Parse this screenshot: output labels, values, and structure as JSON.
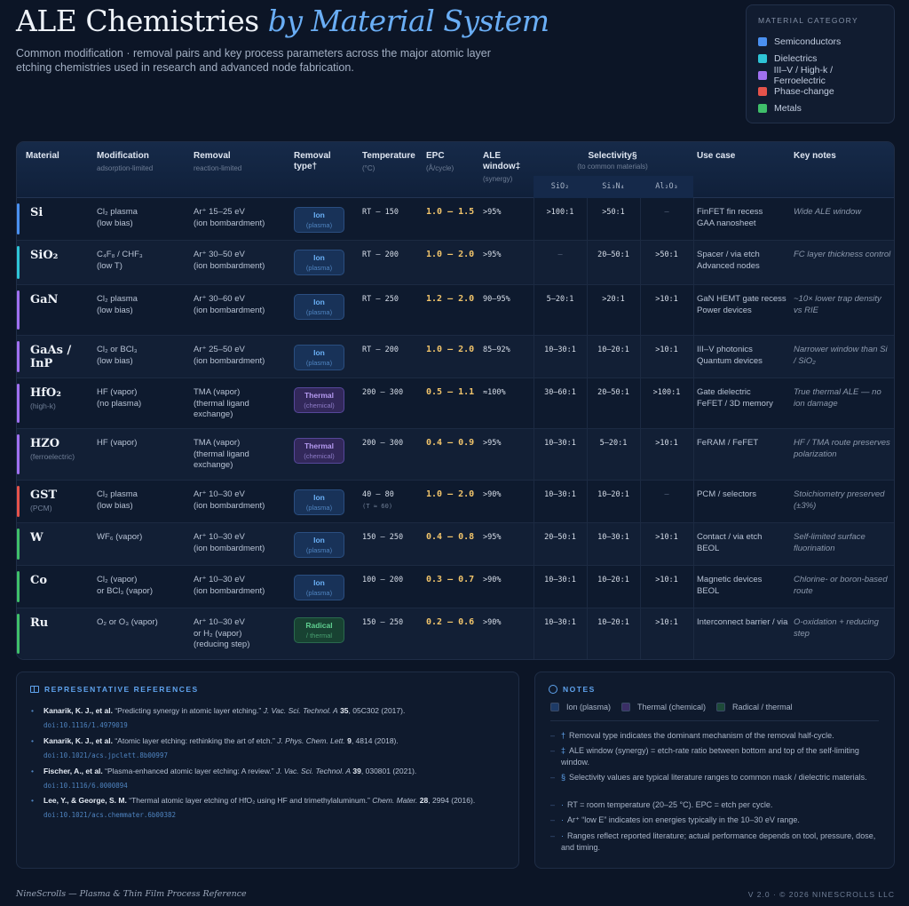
{
  "header": {
    "title_main": "ALE Chemistries",
    "title_accent": "by Material System",
    "subtitle": "Common modification · removal pairs and key process parameters across the major atomic layer etching chemistries used in research and advanced node fabrication."
  },
  "legend": {
    "title": "MATERIAL CATEGORY",
    "items": [
      {
        "label": "Semiconductors",
        "color": "#4a90f0"
      },
      {
        "label": "Dielectrics",
        "color": "#2ec4d6"
      },
      {
        "label": "III–V / High-k / Ferroelectric",
        "color": "#a070f0"
      },
      {
        "label": "Phase-change",
        "color": "#e5534b"
      },
      {
        "label": "Metals",
        "color": "#3fbf6a"
      }
    ]
  },
  "table": {
    "headers": {
      "material": "Material",
      "modification": "Modification",
      "modification_sub": "adsorption-limited",
      "removal": "Removal",
      "removal_sub": "reaction-limited",
      "type": "Removal type†",
      "temperature": "Temperature",
      "temperature_sub": "(°C)",
      "epc": "EPC",
      "epc_sub": "(Å/cycle)",
      "window": "ALE window‡",
      "window_sub": "(synergy)",
      "selectivity": "Selectivity§",
      "selectivity_sub": "(to common materials)",
      "sel_cols": [
        "SiO₂",
        "Si₃N₄",
        "Al₂O₃"
      ],
      "use": "Use case",
      "notes": "Key notes"
    },
    "rows": [
      {
        "material": "Si",
        "sub": "",
        "color": "#4a90f0",
        "mod": "Cl₂ plasma\n(low bias)",
        "rem": "Ar⁺ 15–25 eV\n(ion bombardment)",
        "type": "Ion",
        "type_sub": "(plasma)",
        "kind": "ion",
        "temp": "RT – 150",
        "temp_sub": "",
        "epc": "1.0 – 1.5",
        "window": ">95%",
        "sel": [
          ">100:1",
          ">50:1",
          "—"
        ],
        "use": "FinFET fin recess\nGAA nanosheet",
        "note": "Wide ALE window"
      },
      {
        "material": "SiO₂",
        "sub": "",
        "color": "#2ec4d6",
        "mod": "C₄F₈ / CHF₃\n(low T)",
        "rem": "Ar⁺ 30–50 eV\n(ion bombardment)",
        "type": "Ion",
        "type_sub": "(plasma)",
        "kind": "ion",
        "temp": "RT – 200",
        "temp_sub": "",
        "epc": "1.0 – 2.0",
        "window": ">95%",
        "sel": [
          "—",
          "20–50:1",
          ">50:1"
        ],
        "use": "Spacer / via etch\nAdvanced nodes",
        "note": "FC layer thickness control"
      },
      {
        "material": "GaN",
        "sub": "",
        "color": "#a070f0",
        "mod": "Cl₂ plasma\n(low bias)",
        "rem": "Ar⁺ 30–60 eV\n(ion bombardment)",
        "type": "Ion",
        "type_sub": "(plasma)",
        "kind": "ion",
        "temp": "RT – 250",
        "temp_sub": "",
        "epc": "1.2 – 2.0",
        "window": "90–95%",
        "sel": [
          "5–20:1",
          ">20:1",
          ">10:1"
        ],
        "use": "GaN HEMT gate recess\nPower devices",
        "note": "~10× lower trap density vs RIE"
      },
      {
        "material": "GaAs / InP",
        "sub": "",
        "color": "#a070f0",
        "mod": "Cl₂ or BCl₃\n(low bias)",
        "rem": "Ar⁺ 25–50 eV\n(ion bombardment)",
        "type": "Ion",
        "type_sub": "(plasma)",
        "kind": "ion",
        "temp": "RT – 200",
        "temp_sub": "",
        "epc": "1.0 – 2.0",
        "window": "85–92%",
        "sel": [
          "10–30:1",
          "10–20:1",
          ">10:1"
        ],
        "use": "III–V photonics\nQuantum devices",
        "note": "Narrower window than Si / SiO₂"
      },
      {
        "material": "HfO₂",
        "sub": "(high-k)",
        "color": "#a070f0",
        "mod": "HF (vapor)\n(no plasma)",
        "rem": "TMA (vapor)\n(thermal ligand exchange)",
        "type": "Thermal",
        "type_sub": "(chemical)",
        "kind": "thermal",
        "temp": "200 – 300",
        "temp_sub": "",
        "epc": "0.5 – 1.1",
        "window": "≈100%",
        "sel": [
          "30–60:1",
          "20–50:1",
          ">100:1"
        ],
        "use": "Gate dielectric\nFeFET / 3D memory",
        "note": "True thermal ALE — no ion damage"
      },
      {
        "material": "HZO",
        "sub": "(ferroelectric)",
        "color": "#a070f0",
        "mod": "HF (vapor)",
        "rem": "TMA (vapor)\n(thermal ligand exchange)",
        "type": "Thermal",
        "type_sub": "(chemical)",
        "kind": "thermal",
        "temp": "200 – 300",
        "temp_sub": "",
        "epc": "0.4 – 0.9",
        "window": ">95%",
        "sel": [
          "10–30:1",
          "5–20:1",
          ">10:1"
        ],
        "use": "FeRAM / FeFET",
        "note": "HF / TMA route preserves polarization"
      },
      {
        "material": "GST",
        "sub": "(PCM)",
        "color": "#e5534b",
        "mod": "Cl₂ plasma\n(low bias)",
        "rem": "Ar⁺ 10–30 eV\n(ion bombardment)",
        "type": "Ion",
        "type_sub": "(plasma)",
        "kind": "ion",
        "temp": "40 – 80",
        "temp_sub": "(T ≈ 60)",
        "epc": "1.0 – 2.0",
        "window": ">90%",
        "sel": [
          "10–30:1",
          "10–20:1",
          "—"
        ],
        "use": "PCM / selectors",
        "note": "Stoichiometry preserved (±3%)"
      },
      {
        "material": "W",
        "sub": "",
        "color": "#3fbf6a",
        "mod": "WF₆ (vapor)",
        "rem": "Ar⁺ 10–30 eV\n(ion bombardment)",
        "type": "Ion",
        "type_sub": "(plasma)",
        "kind": "ion",
        "temp": "150 – 250",
        "temp_sub": "",
        "epc": "0.4 – 0.8",
        "window": ">95%",
        "sel": [
          "20–50:1",
          "10–30:1",
          ">10:1"
        ],
        "use": "Contact / via etch\nBEOL",
        "note": "Self-limited surface fluorination"
      },
      {
        "material": "Co",
        "sub": "",
        "color": "#3fbf6a",
        "mod": "Cl₂ (vapor)\nor BCl₃ (vapor)",
        "rem": "Ar⁺ 10–30 eV\n(ion bombardment)",
        "type": "Ion",
        "type_sub": "(plasma)",
        "kind": "ion",
        "temp": "100 – 200",
        "temp_sub": "",
        "epc": "0.3 – 0.7",
        "window": ">90%",
        "sel": [
          "10–30:1",
          "10–20:1",
          ">10:1"
        ],
        "use": "Magnetic devices\nBEOL",
        "note": "Chlorine- or boron-based route"
      },
      {
        "material": "Ru",
        "sub": "",
        "color": "#3fbf6a",
        "mod": "O₂ or O₃ (vapor)",
        "rem": "Ar⁺ 10–30 eV\nor H₂ (vapor)\n(reducing step)",
        "type": "Radical",
        "type_sub": "/ thermal",
        "kind": "radical",
        "temp": "150 – 250",
        "temp_sub": "",
        "epc": "0.2 – 0.6",
        "window": ">90%",
        "sel": [
          "10–30:1",
          "10–20:1",
          ">10:1"
        ],
        "use": "Interconnect barrier / via",
        "note": "O-oxidation + reducing step"
      }
    ]
  },
  "references": {
    "title": "REPRESENTATIVE REFERENCES",
    "items": [
      {
        "authors": "Kanarik, K. J., et al.",
        "title": "“Predicting synergy in atomic layer etching.”",
        "journal": "J. Vac. Sci. Technol. A",
        "volume": "35",
        "rest": ", 05C302 (2017).",
        "doi": "doi:10.1116/1.4979019"
      },
      {
        "authors": "Kanarik, K. J., et al.",
        "title": "“Atomic layer etching: rethinking the art of etch.”",
        "journal": "J. Phys. Chem. Lett.",
        "volume": "9",
        "rest": ", 4814 (2018).",
        "doi": "doi:10.1021/acs.jpclett.8b00997"
      },
      {
        "authors": "Fischer, A., et al.",
        "title": "“Plasma-enhanced atomic layer etching: A review.”",
        "journal": "J. Vac. Sci. Technol. A",
        "volume": "39",
        "rest": ", 030801 (2021).",
        "doi": "doi:10.1116/6.0000894"
      },
      {
        "authors": "Lee, Y., & George, S. M.",
        "title": "“Thermal atomic layer etching of HfO₂ using HF and trimethylaluminum.”",
        "journal": "Chem. Mater.",
        "volume": "28",
        "rest": ", 2994 (2016).",
        "doi": "doi:10.1021/acs.chemmater.6b00382"
      }
    ]
  },
  "notes": {
    "title": "NOTES",
    "legend": [
      {
        "label": "Ion (plasma)",
        "color": "#1d3a66"
      },
      {
        "label": "Thermal (chemical)",
        "color": "#3a2e66"
      },
      {
        "label": "Radical / thermal",
        "color": "#1d4a38"
      }
    ],
    "items": [
      {
        "mark": "†",
        "text": "Removal type indicates the dominant mechanism of the removal half-cycle."
      },
      {
        "mark": "‡",
        "text": "ALE window (synergy) = etch-rate ratio between bottom and top of the self-limiting window."
      },
      {
        "mark": "§",
        "text": "Selectivity values are typical literature ranges to common mask / dielectric materials."
      },
      {
        "mark": "·",
        "text": "RT = room temperature (20–25 °C). EPC = etch per cycle."
      },
      {
        "mark": "·",
        "text": "Ar⁺ “low E” indicates ion energies typically in the 10–30 eV range."
      },
      {
        "mark": "·",
        "text": "Ranges reflect reported literature; actual performance depends on tool, pressure, dose, and timing."
      }
    ]
  },
  "footer": {
    "left": "NineScrolls — Plasma & Thin Film Process Reference",
    "right": "V 2.0 · © 2026 NINESCROLLS LLC"
  }
}
